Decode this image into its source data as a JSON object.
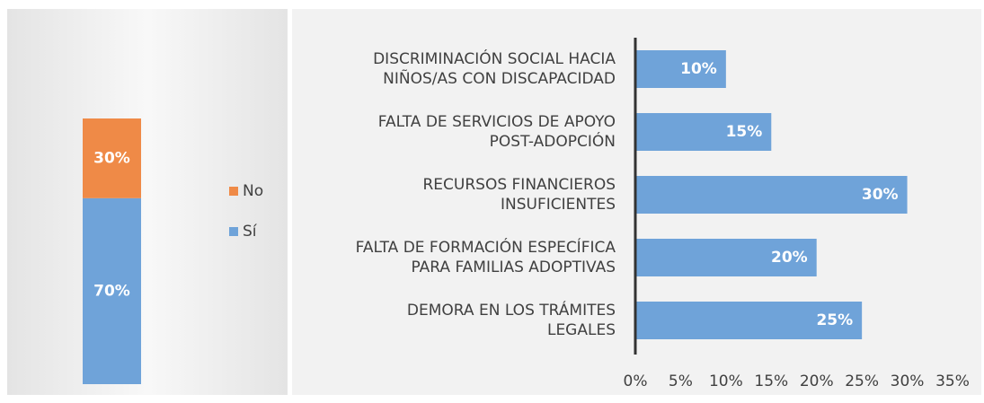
{
  "chart_data": [
    {
      "type": "stacked_bar",
      "series": [
        {
          "name": "Sí",
          "color": "#6fa3d9",
          "values": [
            70
          ],
          "value_labels": [
            "70%"
          ]
        },
        {
          "name": "No",
          "color": "#ef8a47",
          "values": [
            30
          ],
          "value_labels": [
            "30%"
          ]
        }
      ],
      "legend": "right"
    },
    {
      "type": "hbar",
      "categories": [
        "DISCRIMINACIÓN SOCIAL HACIA\nNIÑOS/AS CON DISCAPACIDAD",
        "FALTA DE SERVICIOS DE APOYO\nPOST-ADOPCIÓN",
        "RECURSOS FINANCIEROS\nINSUFICIENTES",
        "FALTA DE FORMACIÓN ESPECÍFICA\nPARA FAMILIAS ADOPTIVAS",
        "DEMORA EN LOS TRÁMITES\nLEGALES"
      ],
      "values": [
        10,
        15,
        30,
        20,
        25
      ],
      "value_labels": [
        "10%",
        "15%",
        "30%",
        "20%",
        "25%"
      ],
      "color": "#6fa3d9",
      "xlim": [
        0,
        35
      ],
      "xticks": [
        {
          "value": 0,
          "label": "0%"
        },
        {
          "value": 5,
          "label": "5%"
        },
        {
          "value": 10,
          "label": "10%"
        },
        {
          "value": 15,
          "label": "15%"
        },
        {
          "value": 20,
          "label": "20%"
        },
        {
          "value": 25,
          "label": "25%"
        },
        {
          "value": 30,
          "label": "30%"
        },
        {
          "value": 35,
          "label": "35%"
        }
      ]
    }
  ]
}
